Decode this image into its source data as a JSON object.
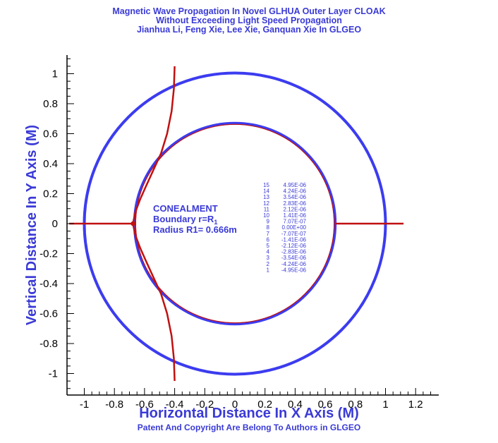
{
  "chart_data": {
    "type": "line",
    "title": "Magnetic Wave Propagation In Novel GLHUA Outer Layer  CLOAK",
    "subtitle": "Without Exceeding Light Speed Propagation",
    "authors": "Jianhua Li, Feng Xie, Lee Xie, Ganquan Xie In GLGEO",
    "xlabel": "Horizontal Distance In X Axis (M)",
    "ylabel": "Vertical Distance In Y Axis (M)",
    "footer": "Patent And Copyright Are Belong To Authors in GLGEO",
    "xlim": [
      -1.1,
      1.35
    ],
    "ylim": [
      -1.1,
      1.1
    ],
    "xticks": [
      "-1",
      "-0.8",
      "-0.6",
      "-0.4",
      "-0.2",
      "0",
      "0.2",
      "0.4",
      "0.6",
      "0.8",
      "1",
      "1.2"
    ],
    "yticks": [
      "1",
      "0.8",
      "0.6",
      "0.4",
      "0.2",
      "0",
      "-0.2",
      "-0.4",
      "-0.6",
      "-0.8",
      "-1"
    ],
    "annotation": {
      "line1": "CONEALMENT",
      "line2": "Boundary r=R",
      "line2_sub": "1",
      "line3": "Radius R1= 0.666m"
    },
    "circles": [
      {
        "name": "outer boundary",
        "r": 1.0,
        "color": "#3c3cf0"
      },
      {
        "name": "inner boundary",
        "r": 0.666,
        "color": "#3c3cf0"
      }
    ],
    "wave_curve": {
      "color": "#c01010",
      "points": [
        [
          -0.4,
          1.05
        ],
        [
          -0.405,
          0.9
        ],
        [
          -0.42,
          0.75
        ],
        [
          -0.45,
          0.6
        ],
        [
          -0.49,
          0.47
        ],
        [
          -0.54,
          0.36
        ],
        [
          -0.59,
          0.25
        ],
        [
          -0.63,
          0.16
        ],
        [
          -0.66,
          0.08
        ],
        [
          -0.673,
          0.02
        ],
        [
          -0.675,
          0.0
        ],
        [
          -0.673,
          -0.02
        ],
        [
          -0.66,
          -0.08
        ],
        [
          -0.63,
          -0.16
        ],
        [
          -0.59,
          -0.25
        ],
        [
          -0.54,
          -0.36
        ],
        [
          -0.49,
          -0.47
        ],
        [
          -0.45,
          -0.6
        ],
        [
          -0.42,
          -0.75
        ],
        [
          -0.405,
          -0.9
        ],
        [
          -0.4,
          -1.05
        ]
      ],
      "left_segment": [
        [
          -1.1,
          0
        ],
        [
          -0.675,
          0
        ]
      ],
      "right_segment": [
        [
          0.666,
          0
        ],
        [
          1.12,
          0
        ]
      ]
    },
    "legend": [
      {
        "level": "15",
        "value": "4.95E-06"
      },
      {
        "level": "14",
        "value": "4.24E-06"
      },
      {
        "level": "13",
        "value": "3.54E-06"
      },
      {
        "level": "12",
        "value": "2.83E-06"
      },
      {
        "level": "11",
        "value": "2.12E-06"
      },
      {
        "level": "10",
        "value": "1.41E-06"
      },
      {
        "level": "9",
        "value": "7.07E-07"
      },
      {
        "level": "8",
        "value": "0.00E+00"
      },
      {
        "level": "7",
        "value": "-7.07E-07"
      },
      {
        "level": "6",
        "value": "-1.41E-06"
      },
      {
        "level": "5",
        "value": "-2.12E-06"
      },
      {
        "level": "4",
        "value": "-2.83E-06"
      },
      {
        "level": "3",
        "value": "-3.54E-06"
      },
      {
        "level": "2",
        "value": "-4.24E-06"
      },
      {
        "level": "1",
        "value": "-4.95E-06"
      }
    ]
  }
}
